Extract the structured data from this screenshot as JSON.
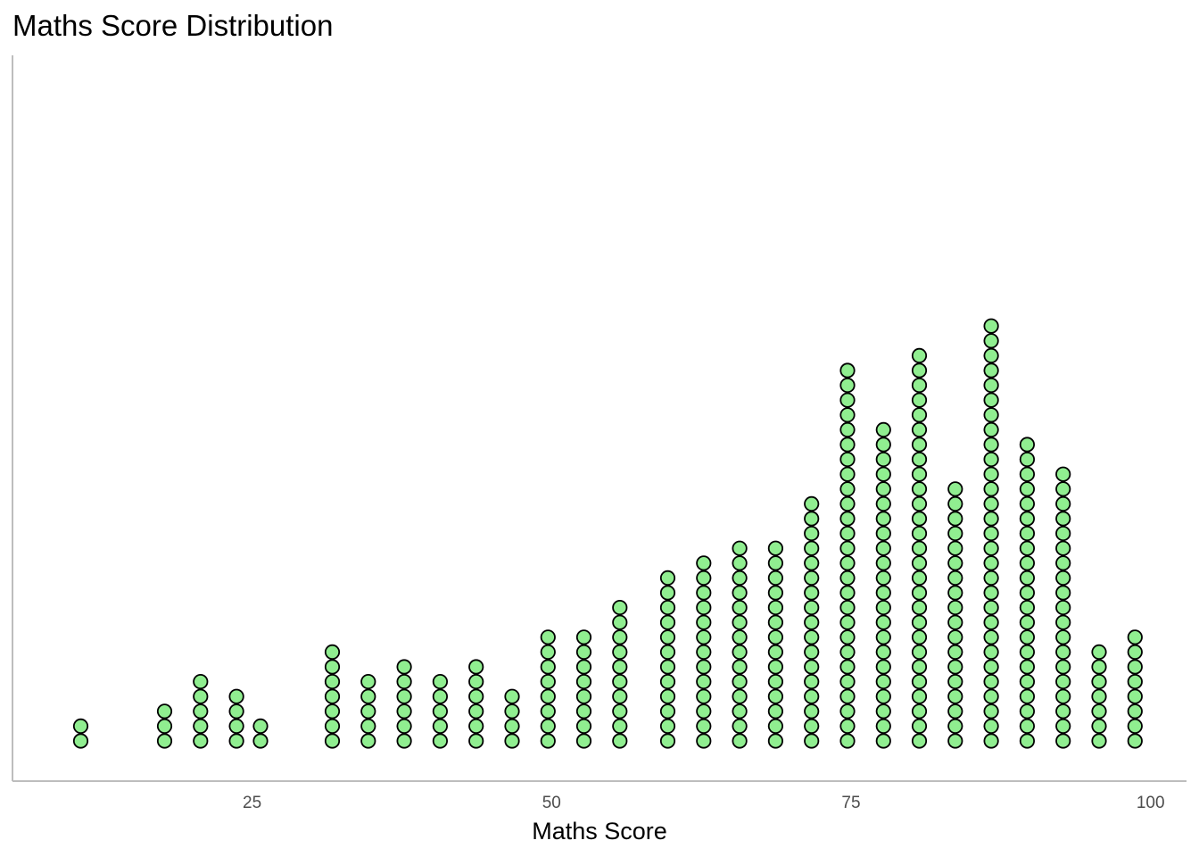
{
  "chart_data": {
    "type": "scatter",
    "subtype": "dotplot",
    "title": "Maths Score Distribution",
    "xlabel": "Maths Score",
    "ylabel": "",
    "xlim": [
      5,
      103
    ],
    "x_ticks": [
      25,
      50,
      75,
      100
    ],
    "x_tick_labels": [
      "25",
      "50",
      "75",
      "100"
    ],
    "grid": false,
    "legend": "none",
    "dot_fill": "#90EE90",
    "dot_stroke": "#000000",
    "bins": [
      {
        "x": 10.7,
        "count": 2
      },
      {
        "x": 17.7,
        "count": 3
      },
      {
        "x": 20.7,
        "count": 5
      },
      {
        "x": 23.7,
        "count": 4
      },
      {
        "x": 25.7,
        "count": 2
      },
      {
        "x": 31.7,
        "count": 7
      },
      {
        "x": 34.7,
        "count": 5
      },
      {
        "x": 37.7,
        "count": 6
      },
      {
        "x": 40.7,
        "count": 5
      },
      {
        "x": 43.7,
        "count": 6
      },
      {
        "x": 46.7,
        "count": 4
      },
      {
        "x": 49.7,
        "count": 8
      },
      {
        "x": 52.7,
        "count": 8
      },
      {
        "x": 55.7,
        "count": 10
      },
      {
        "x": 59.7,
        "count": 12
      },
      {
        "x": 62.7,
        "count": 13
      },
      {
        "x": 65.7,
        "count": 14
      },
      {
        "x": 68.7,
        "count": 14
      },
      {
        "x": 71.7,
        "count": 17
      },
      {
        "x": 74.7,
        "count": 26
      },
      {
        "x": 77.7,
        "count": 22
      },
      {
        "x": 80.7,
        "count": 27
      },
      {
        "x": 83.7,
        "count": 18
      },
      {
        "x": 86.7,
        "count": 29
      },
      {
        "x": 89.7,
        "count": 21
      },
      {
        "x": 92.7,
        "count": 19
      },
      {
        "x": 95.7,
        "count": 7
      },
      {
        "x": 98.7,
        "count": 8
      }
    ]
  }
}
